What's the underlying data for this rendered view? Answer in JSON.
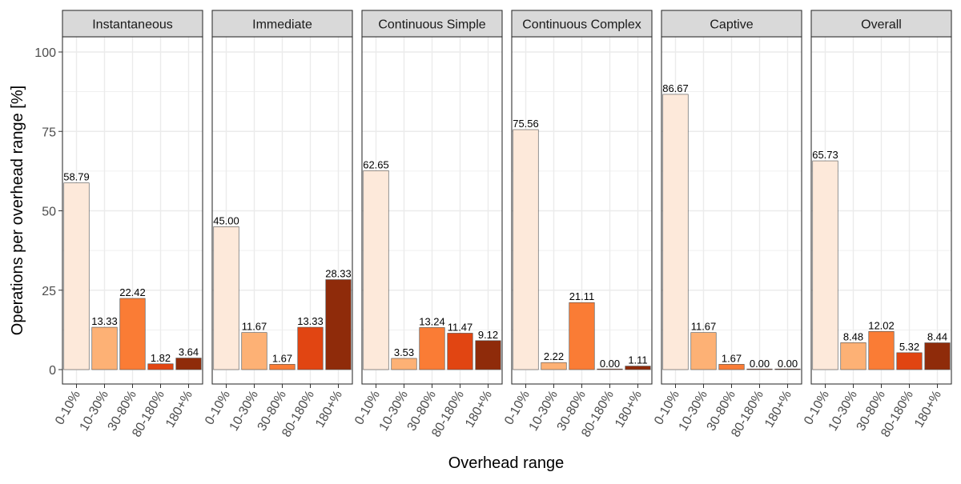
{
  "chart_data": {
    "type": "bar",
    "facet_by": "facets",
    "xlabel": "Overhead range",
    "ylabel": "Operations per overhead range [%]",
    "ylim": [
      0,
      105
    ],
    "yticks": [
      0,
      25,
      50,
      75,
      100
    ],
    "grid": true,
    "categories": [
      "0-10%",
      "10-30%",
      "30-80%",
      "80-180%",
      "180+%"
    ],
    "category_colors": [
      "#FDE9DA",
      "#FDB175",
      "#FA7C35",
      "#E14512",
      "#8F2B0A"
    ],
    "facets": [
      {
        "name": "Instantaneous",
        "values": [
          58.79,
          13.33,
          22.42,
          1.82,
          3.64
        ],
        "labels": [
          "58.79",
          "13.33",
          "22.42",
          "1.82",
          "3.64"
        ]
      },
      {
        "name": "Immediate",
        "values": [
          45.0,
          11.67,
          1.67,
          13.33,
          28.33
        ],
        "labels": [
          "45.00",
          "11.67",
          "1.67",
          "13.33",
          "28.33"
        ]
      },
      {
        "name": "Continuous Simple",
        "values": [
          62.65,
          3.53,
          13.24,
          11.47,
          9.12
        ],
        "labels": [
          "62.65",
          "3.53",
          "13.24",
          "11.47",
          "9.12"
        ]
      },
      {
        "name": "Continuous Complex",
        "values": [
          75.56,
          2.22,
          21.11,
          0.0,
          1.11
        ],
        "labels": [
          "75.56",
          "2.22",
          "21.11",
          "0.00",
          "1.11"
        ]
      },
      {
        "name": "Captive",
        "values": [
          86.67,
          11.67,
          1.67,
          0.0,
          0.0
        ],
        "labels": [
          "86.67",
          "11.67",
          "1.67",
          "0.00",
          "0.00"
        ]
      },
      {
        "name": "Overall",
        "values": [
          65.73,
          8.48,
          12.02,
          5.32,
          8.44
        ],
        "labels": [
          "65.73",
          "8.48",
          "12.02",
          "5.32",
          "8.44"
        ]
      }
    ]
  }
}
